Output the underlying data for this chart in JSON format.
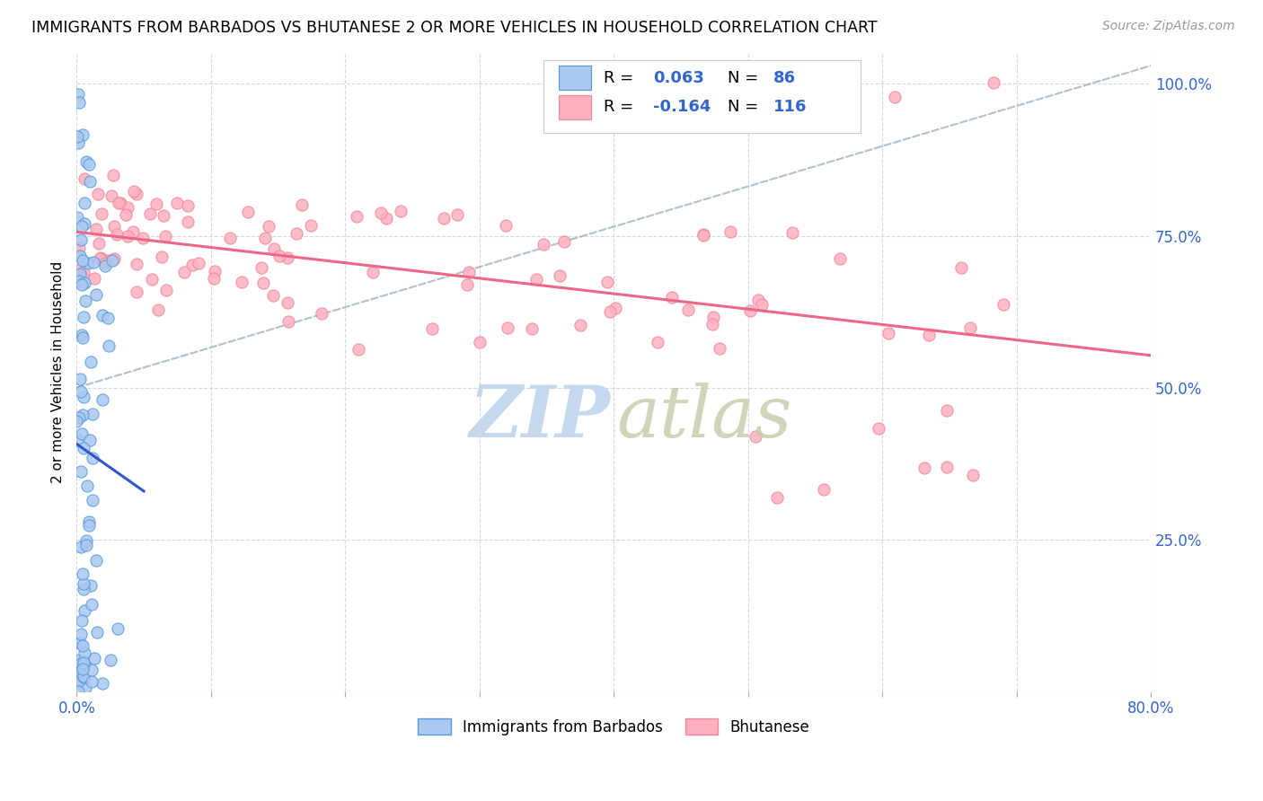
{
  "title": "IMMIGRANTS FROM BARBADOS VS BHUTANESE 2 OR MORE VEHICLES IN HOUSEHOLD CORRELATION CHART",
  "source": "Source: ZipAtlas.com",
  "ylabel": "2 or more Vehicles in Household",
  "ytick_labels": [
    "",
    "25.0%",
    "50.0%",
    "75.0%",
    "100.0%"
  ],
  "ytick_positions": [
    0.0,
    0.25,
    0.5,
    0.75,
    1.0
  ],
  "xlim": [
    0.0,
    0.8
  ],
  "ylim": [
    0.0,
    1.05
  ],
  "legend_labels": [
    "Immigrants from Barbados",
    "Bhutanese"
  ],
  "barbados_color": "#aac8f0",
  "barbados_edge": "#5599dd",
  "bhutanese_color": "#ffb0c0",
  "bhutanese_edge": "#ee8899",
  "barbados_line_color": "#3355cc",
  "bhutanese_line_color": "#ee6688",
  "dashed_line_color": "#99aabb",
  "watermark_zip_color": "#c5d8ee",
  "watermark_atlas_color": "#c8c8a8",
  "seed": 7
}
